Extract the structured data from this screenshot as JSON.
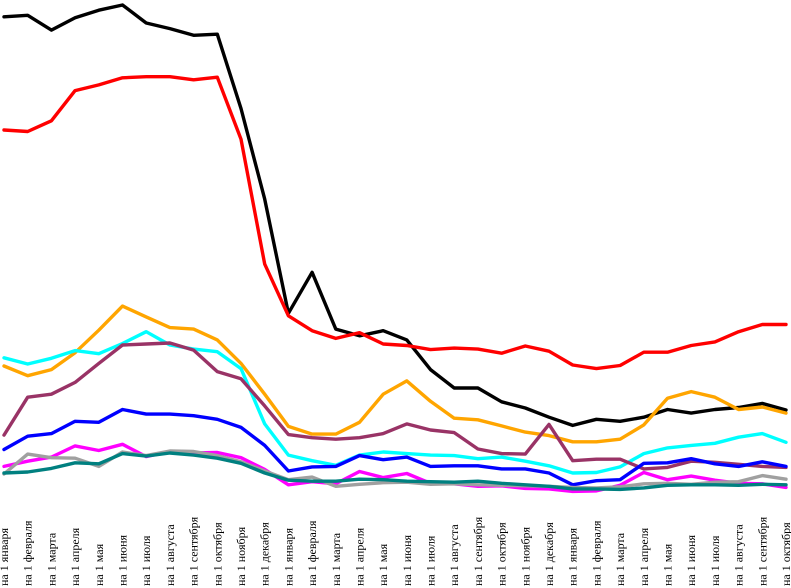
{
  "chart_data": {
    "type": "line",
    "title": "",
    "xlabel": "",
    "ylabel": "",
    "ylim": [
      0,
      100
    ],
    "grid": false,
    "legend": "none",
    "categories": [
      "на 1 января",
      "на 1 февраля",
      "на 1 марта",
      "на 1 апреля",
      "на 1 мая",
      "на 1 июня",
      "на 1 июля",
      "на 1 августа",
      "на 1 сентября",
      "на 1 октября",
      "на 1 ноября",
      "на 1 декабря",
      "на 1 января",
      "на 1 февраля",
      "на 1 марта",
      "на 1 апреля",
      "на 1 мая",
      "на 1 июня",
      "на 1 июля",
      "на 1 августа",
      "на 1 сентября",
      "на 1 октября",
      "на 1 ноября",
      "на 1 декабря",
      "на 1 января",
      "на 1 февраля",
      "на 1 марта",
      "на 1 апреля",
      "на 1 мая",
      "на 1 июня",
      "на 1 июля",
      "на 1 августа",
      "на 1 сентября",
      "на 1 октября"
    ],
    "series": [
      {
        "color": "#000000",
        "values": [
          97.3,
          97.6,
          94.7,
          97.1,
          98.6,
          99.6,
          96.1,
          95.0,
          93.7,
          93.9,
          79.4,
          61.7,
          39.4,
          47.4,
          36.3,
          35.0,
          36.0,
          34.2,
          28.4,
          24.8,
          24.8,
          22.1,
          20.9,
          19.1,
          17.5,
          18.7,
          18.3,
          19.1,
          20.6,
          19.9,
          20.6,
          21.0,
          21.8,
          20.5
        ]
      },
      {
        "color": "#ff0000",
        "values": [
          75.2,
          74.9,
          77.0,
          82.9,
          84.0,
          85.4,
          85.6,
          85.6,
          85.0,
          85.5,
          73.4,
          49.0,
          38.9,
          36.0,
          34.5,
          35.6,
          33.4,
          33.1,
          32.3,
          32.6,
          32.4,
          31.6,
          33.0,
          32.0,
          29.3,
          28.6,
          29.2,
          31.8,
          31.8,
          33.1,
          33.8,
          35.8,
          37.2,
          37.2
        ]
      },
      {
        "color": "#ffa500",
        "values": [
          29.1,
          27.2,
          28.4,
          31.7,
          36.1,
          40.8,
          38.7,
          36.6,
          36.3,
          34.2,
          29.6,
          23.6,
          17.3,
          15.8,
          15.8,
          18.1,
          23.6,
          26.2,
          22.2,
          18.9,
          18.6,
          17.4,
          16.2,
          15.5,
          14.3,
          14.3,
          14.8,
          17.6,
          22.8,
          24.1,
          23.0,
          20.6,
          21.1,
          19.9
        ]
      },
      {
        "color": "#00ffff",
        "values": [
          30.7,
          29.5,
          30.6,
          32.1,
          31.5,
          33.5,
          35.8,
          33.2,
          32.4,
          31.9,
          28.6,
          17.8,
          11.7,
          10.6,
          9.7,
          11.7,
          12.3,
          12.0,
          11.7,
          11.6,
          11.0,
          11.3,
          10.5,
          9.6,
          8.2,
          8.3,
          9.4,
          12.0,
          13.1,
          13.6,
          14.0,
          15.2,
          15.9,
          14.2
        ]
      },
      {
        "color": "#993366",
        "values": [
          15.6,
          23.0,
          23.6,
          25.9,
          29.6,
          33.2,
          33.4,
          33.6,
          32.2,
          28.0,
          26.6,
          21.3,
          15.7,
          15.1,
          14.8,
          15.1,
          15.9,
          17.8,
          16.6,
          16.1,
          12.9,
          12.0,
          11.9,
          17.7,
          10.6,
          10.9,
          10.9,
          9.0,
          9.3,
          10.5,
          10.3,
          9.9,
          9.5,
          9.3
        ]
      },
      {
        "color": "#0000ff",
        "values": [
          12.8,
          15.4,
          15.9,
          18.3,
          18.1,
          20.6,
          19.7,
          19.7,
          19.4,
          18.7,
          17.1,
          13.6,
          8.6,
          9.4,
          9.5,
          11.6,
          10.8,
          11.3,
          9.5,
          9.6,
          9.6,
          9.0,
          9.0,
          8.2,
          5.9,
          6.7,
          6.9,
          10.1,
          10.2,
          11.0,
          10.0,
          9.5,
          10.4,
          9.5
        ]
      },
      {
        "color": "#ff00ff",
        "values": [
          9.5,
          10.5,
          11.3,
          13.5,
          12.6,
          13.8,
          11.4,
          12.4,
          12.1,
          12.2,
          11.2,
          8.9,
          5.9,
          6.5,
          6.1,
          8.5,
          7.3,
          8.1,
          6.2,
          6.1,
          5.6,
          5.7,
          5.2,
          5.1,
          4.6,
          4.7,
          5.8,
          8.3,
          6.9,
          7.6,
          6.8,
          6.2,
          6.1,
          5.4
        ]
      },
      {
        "color": "#a0a0a0",
        "values": [
          8.0,
          11.9,
          11.2,
          11.1,
          9.5,
          12.3,
          11.6,
          12.5,
          12.4,
          11.6,
          10.4,
          8.6,
          6.9,
          7.4,
          5.6,
          6.0,
          6.3,
          6.4,
          6.0,
          6.1,
          5.9,
          5.8,
          5.7,
          5.6,
          5.4,
          5.3,
          5.5,
          6.1,
          6.2,
          6.0,
          6.4,
          6.5,
          7.7,
          7.0
        ]
      },
      {
        "color": "#008080",
        "values": [
          8.2,
          8.4,
          9.1,
          10.2,
          10.0,
          12.0,
          11.5,
          12.1,
          11.7,
          11.1,
          10.1,
          8.2,
          6.8,
          6.6,
          6.6,
          7.0,
          6.9,
          6.6,
          6.5,
          6.4,
          6.6,
          6.2,
          5.9,
          5.6,
          5.1,
          5.1,
          5.0,
          5.3,
          5.8,
          5.9,
          5.9,
          5.8,
          6.0,
          5.9
        ]
      }
    ]
  }
}
